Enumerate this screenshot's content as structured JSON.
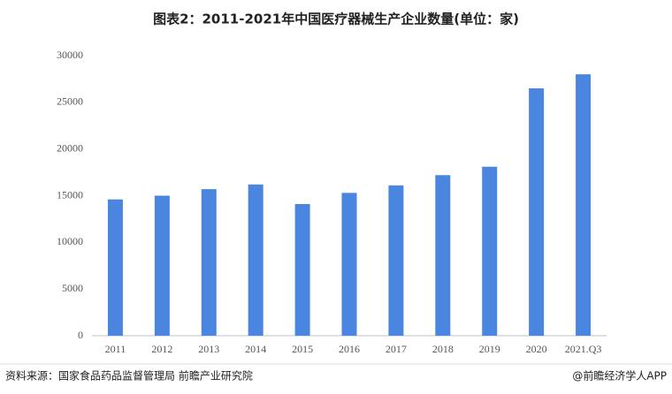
{
  "chart_data": {
    "type": "bar",
    "title": "图表2：2011-2021年中国医疗器械生产企业数量(单位：家)",
    "categories": [
      "2011",
      "2012",
      "2013",
      "2014",
      "2015",
      "2016",
      "2017",
      "2018",
      "2019",
      "2020",
      "2021.Q3"
    ],
    "values": [
      14600,
      15000,
      15700,
      16200,
      14100,
      15300,
      16100,
      17200,
      18100,
      26500,
      28000
    ],
    "color": "#4a86e0",
    "ylim": [
      0,
      30000
    ],
    "yticks": [
      0,
      5000,
      10000,
      15000,
      20000,
      25000,
      30000
    ],
    "grid": false
  },
  "footer": {
    "source": "资料来源：国家食品药品监督管理局 前瞻产业研究院",
    "brand": "@前瞻经济学人APP"
  }
}
